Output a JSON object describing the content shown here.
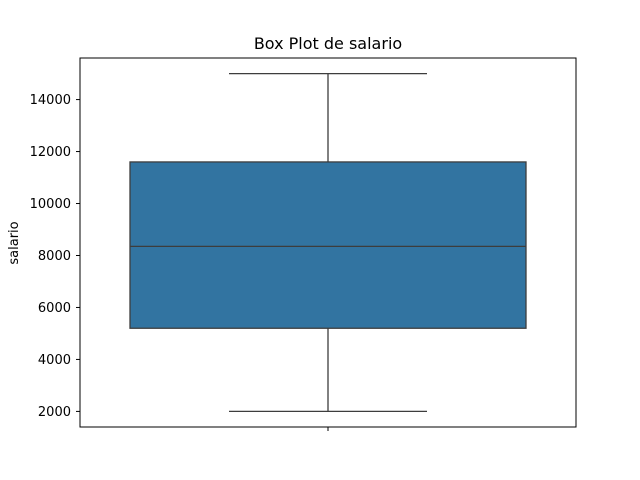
{
  "chart_data": {
    "type": "box",
    "title": "Box Plot de salario",
    "xlabel": "",
    "ylabel": "salario",
    "ylim": [
      1400,
      15600
    ],
    "yticks": [
      2000,
      4000,
      6000,
      8000,
      10000,
      12000,
      14000
    ],
    "ytick_labels": [
      "2000",
      "4000",
      "6000",
      "8000",
      "10000",
      "12000",
      "14000"
    ],
    "box": {
      "whisker_low": 2000,
      "q1": 5200,
      "median": 8350,
      "q3": 11600,
      "whisker_high": 15000
    },
    "box_color": "#3274a1",
    "line_color": "#3d3d3d",
    "grid": false,
    "legend": "none"
  }
}
